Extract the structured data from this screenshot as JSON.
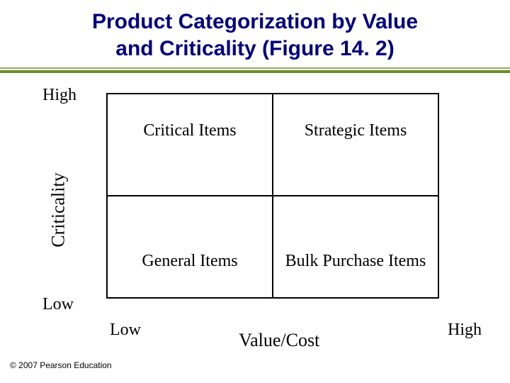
{
  "title": {
    "line1": "Product Categorization by Value",
    "line2": "and Criticality (Figure 14. 2)",
    "fontsize": 30,
    "color": "#000080"
  },
  "rule": {
    "top_color": "#9aa86a",
    "bottom_color": "#6b8e23"
  },
  "axes": {
    "y_label": "Criticality",
    "y_high": "High",
    "y_low": "Low",
    "x_label": "Value/Cost",
    "x_low": "Low",
    "x_high": "High",
    "label_fontsize": 26,
    "tick_fontsize": 24
  },
  "matrix": {
    "type": "2x2",
    "border_color": "#000000",
    "background_color": "#ffffff",
    "cell_fontsize": 24,
    "cells": {
      "top_left": "Critical Items",
      "top_right": "Strategic Items",
      "bottom_left": "General Items",
      "bottom_right": "Bulk Purchase Items"
    }
  },
  "copyright": {
    "text": "© 2007 Pearson Education",
    "fontsize": 12,
    "color": "#000000"
  }
}
